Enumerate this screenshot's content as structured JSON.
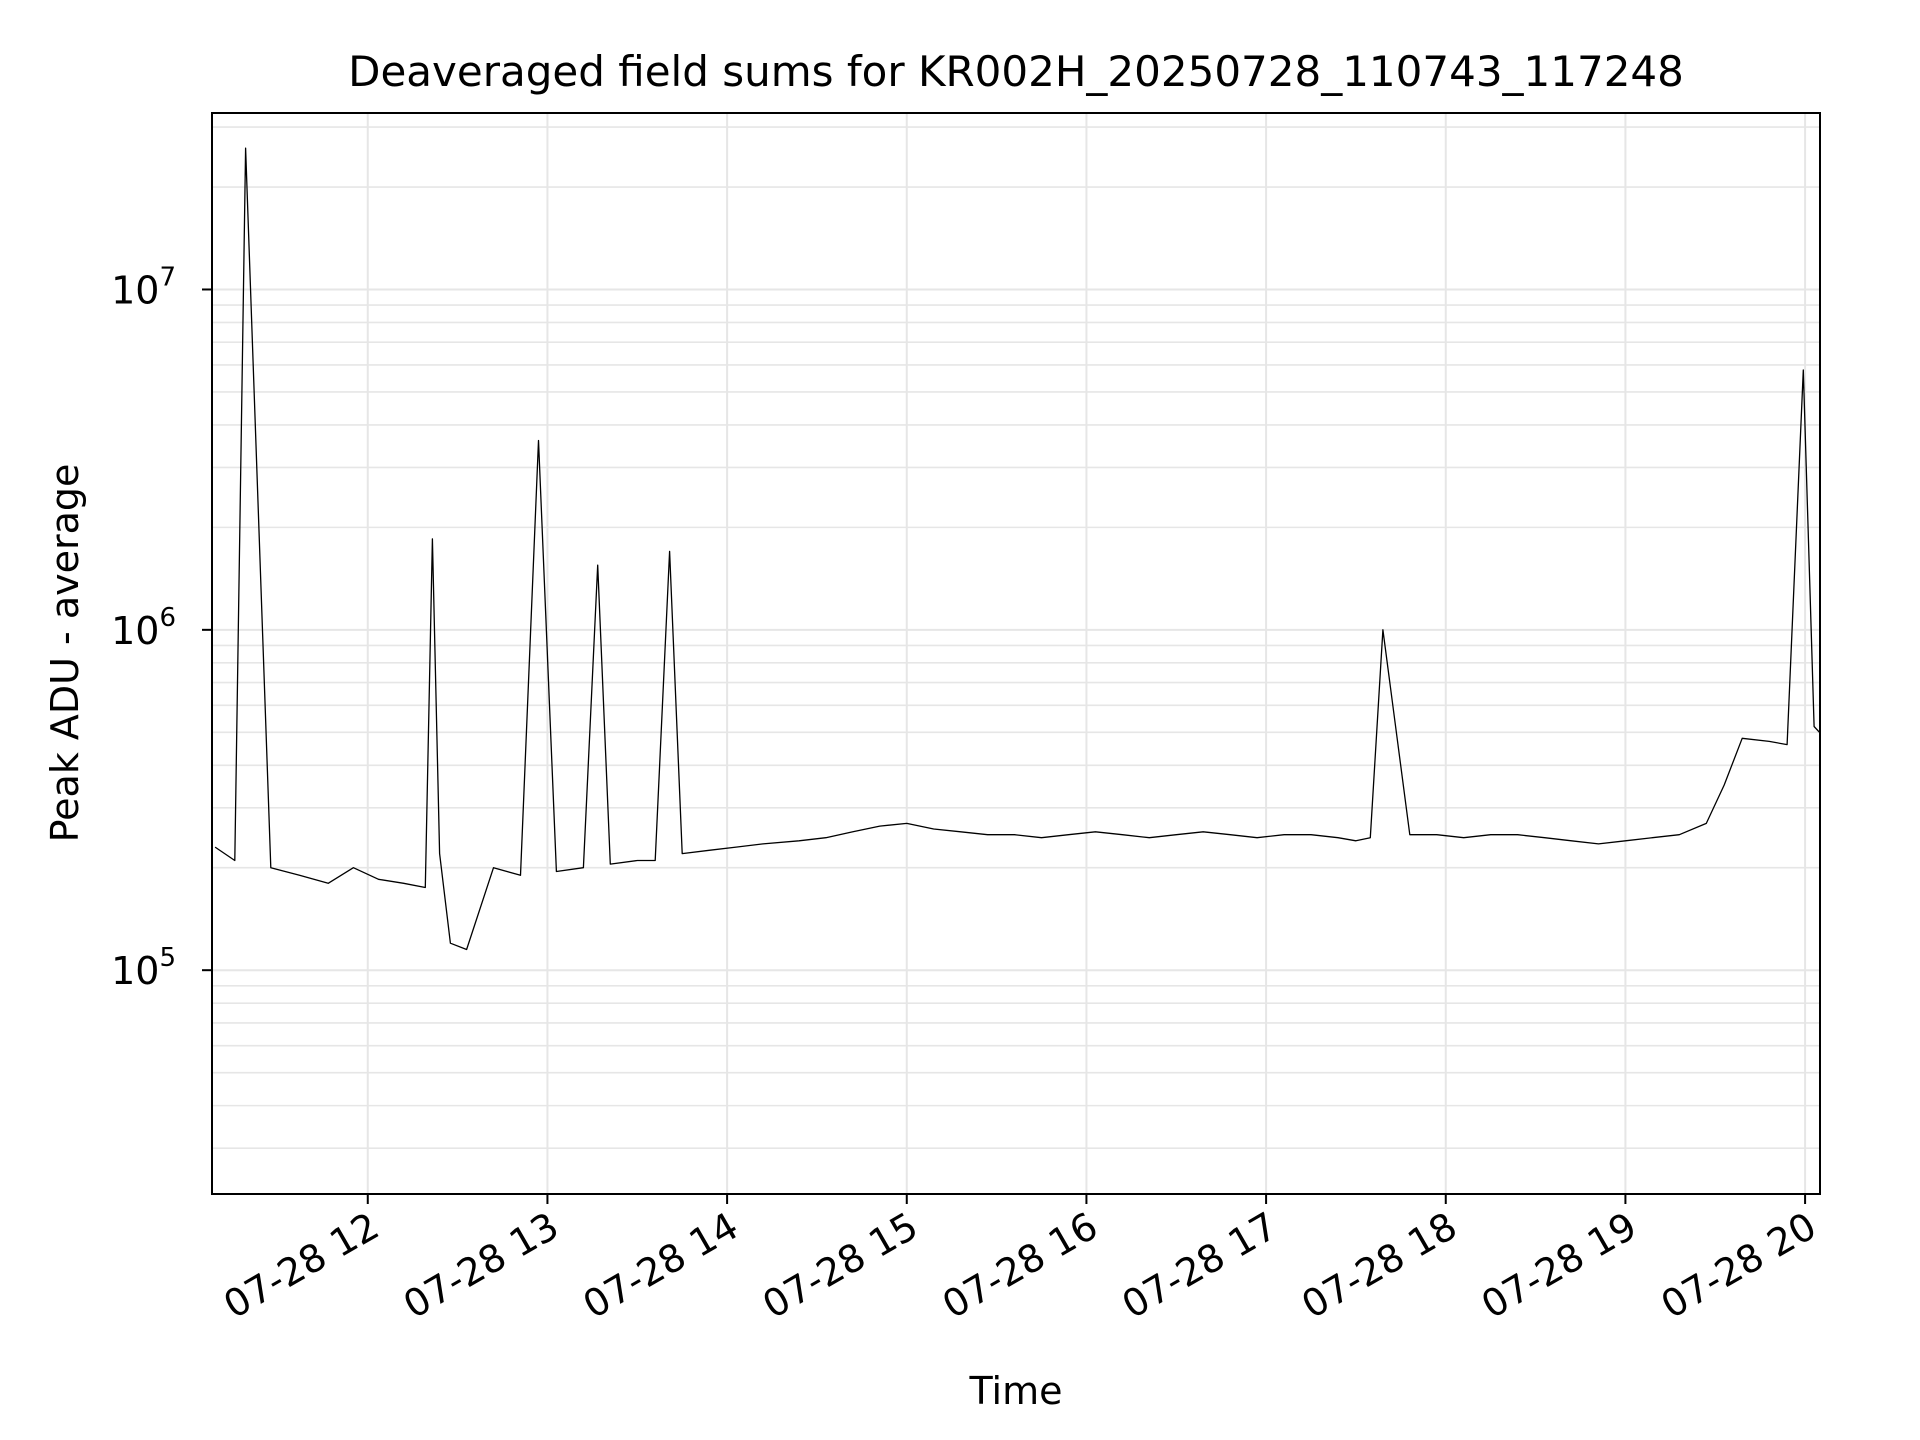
{
  "chart_data": {
    "type": "line",
    "title": "Deaveraged field sums for KR002H_20250728_110743_117248",
    "xlabel": "Time",
    "ylabel": "Peak ADU - average",
    "x_unit": "hours on 2025-07-28",
    "xlim": [
      11.133,
      20.083
    ],
    "ylim": [
      22000,
      33000000
    ],
    "yscale": "log",
    "grid": true,
    "grid_minor_y": true,
    "line_color": "#000000",
    "x_ticks": [
      {
        "value": 12,
        "label": "07-28 12"
      },
      {
        "value": 13,
        "label": "07-28 13"
      },
      {
        "value": 14,
        "label": "07-28 14"
      },
      {
        "value": 15,
        "label": "07-28 15"
      },
      {
        "value": 16,
        "label": "07-28 16"
      },
      {
        "value": 17,
        "label": "07-28 17"
      },
      {
        "value": 18,
        "label": "07-28 18"
      },
      {
        "value": 19,
        "label": "07-28 19"
      },
      {
        "value": 20,
        "label": "07-28 20"
      }
    ],
    "y_ticks": [
      {
        "value": 100000,
        "base": "10",
        "exp": "5"
      },
      {
        "value": 1000000,
        "base": "10",
        "exp": "6"
      },
      {
        "value": 10000000,
        "base": "10",
        "exp": "7"
      }
    ],
    "series": [
      {
        "x": [
          11.15,
          11.26,
          11.32,
          11.46,
          11.62,
          11.78,
          11.92,
          12.06,
          12.2,
          12.32,
          12.36,
          12.4,
          12.46,
          12.55,
          12.7,
          12.85,
          12.95,
          13.05,
          13.2,
          13.28,
          13.35,
          13.5,
          13.6,
          13.68,
          13.75,
          13.9,
          14.05,
          14.2,
          14.4,
          14.55,
          14.7,
          14.85,
          15.0,
          15.15,
          15.3,
          15.45,
          15.6,
          15.75,
          15.9,
          16.05,
          16.2,
          16.35,
          16.5,
          16.65,
          16.8,
          16.95,
          17.1,
          17.25,
          17.4,
          17.5,
          17.58,
          17.65,
          17.8,
          17.95,
          18.1,
          18.25,
          18.4,
          18.55,
          18.7,
          18.85,
          19.0,
          19.15,
          19.3,
          19.45,
          19.55,
          19.65,
          19.8,
          19.9,
          19.99,
          20.05,
          20.08
        ],
        "y": [
          230000,
          210000,
          26000000,
          200000,
          190000,
          180000,
          200000,
          185000,
          180000,
          175000,
          1850000,
          220000,
          120000,
          115000,
          200000,
          190000,
          3600000,
          195000,
          200000,
          1550000,
          205000,
          210000,
          210000,
          1700000,
          220000,
          225000,
          230000,
          235000,
          240000,
          245000,
          255000,
          265000,
          270000,
          260000,
          255000,
          250000,
          250000,
          245000,
          250000,
          255000,
          250000,
          245000,
          250000,
          255000,
          250000,
          245000,
          250000,
          250000,
          245000,
          240000,
          245000,
          1000000,
          250000,
          250000,
          245000,
          250000,
          250000,
          245000,
          240000,
          235000,
          240000,
          245000,
          250000,
          270000,
          350000,
          480000,
          470000,
          460000,
          5800000,
          520000,
          500000
        ]
      }
    ]
  }
}
